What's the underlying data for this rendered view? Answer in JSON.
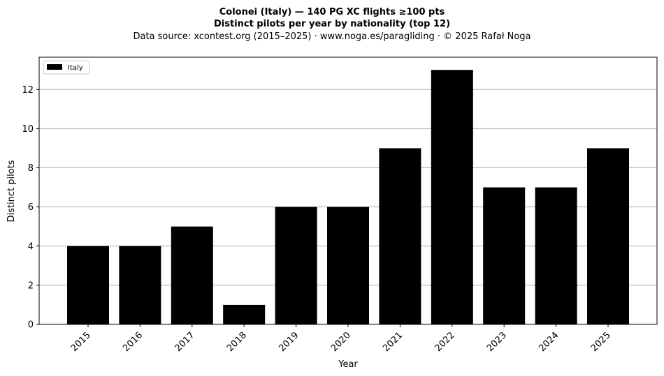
{
  "chart_data": {
    "type": "bar",
    "title": "Colonei (Italy)  —  140 PG XC flights ≥100 pts",
    "subtitle": "Distinct pilots per year by nationality (top 12)",
    "source": "Data source: xcontest.org (2015–2025)  ·  www.noga.es/paragliding  ·  © 2025 Rafał Noga",
    "xlabel": "Year",
    "ylabel": "Distinct pilots",
    "categories": [
      "2015",
      "2016",
      "2017",
      "2018",
      "2019",
      "2020",
      "2021",
      "2022",
      "2023",
      "2024",
      "2025"
    ],
    "series": [
      {
        "name": "Italy",
        "color": "#000000",
        "values": [
          4,
          4,
          5,
          1,
          6,
          6,
          9,
          13,
          7,
          7,
          9
        ]
      }
    ],
    "ylim": [
      0,
      13.65
    ],
    "yticks": [
      0,
      2,
      4,
      6,
      8,
      10,
      12
    ],
    "grid": "y",
    "legend": "top-left"
  }
}
